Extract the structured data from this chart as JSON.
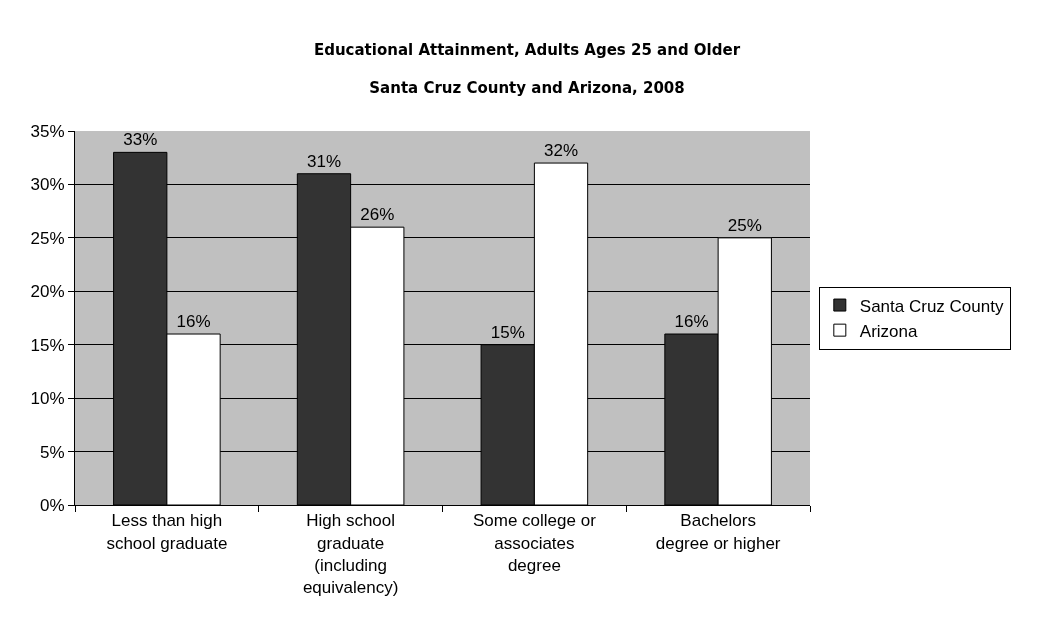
{
  "chart_data": {
    "type": "bar",
    "title": "Educational Attainment, Adults Ages 25 and Older",
    "subtitle": "Santa Cruz County and Arizona, 2008",
    "categories": [
      "Less than high school graduate",
      "High school graduate (including equivalency)",
      "Some college or associates degree",
      "Bachelors degree or higher"
    ],
    "series": [
      {
        "name": "Santa Cruz County",
        "color": "#333333",
        "values": [
          33,
          31,
          15,
          16
        ],
        "value_labels": [
          "33%",
          "31%",
          "15%",
          "16%"
        ]
      },
      {
        "name": "Arizona",
        "color": "#ffffff",
        "values": [
          16,
          26,
          32,
          25
        ],
        "value_labels": [
          "16%",
          "26%",
          "32%",
          "25%"
        ]
      }
    ],
    "ylim": [
      0,
      35
    ],
    "yticks": [
      {
        "value": 0,
        "label": "0%"
      },
      {
        "value": 5,
        "label": "5%"
      },
      {
        "value": 10,
        "label": "10%"
      },
      {
        "value": 15,
        "label": "15%"
      },
      {
        "value": 20,
        "label": "20%"
      },
      {
        "value": 25,
        "label": "25%"
      },
      {
        "value": 30,
        "label": "30%"
      },
      {
        "value": 35,
        "label": "35%"
      }
    ],
    "grid": "y",
    "legend": "right"
  }
}
